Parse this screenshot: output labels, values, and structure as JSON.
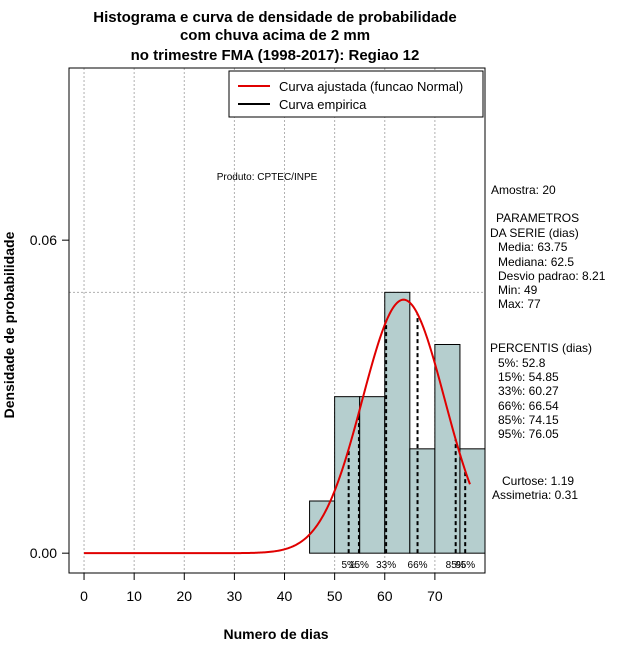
{
  "chart_data": {
    "type": "histogram",
    "title_lines": [
      "Histograma e curva de densidade de probabilidade",
      "com chuva acima de 2 mm",
      "no trimestre FMA (1998-2017): Regiao 12"
    ],
    "xlabel": "Numero de dias",
    "ylabel": "Densidade de probabilidade",
    "xlim": [
      -3,
      80
    ],
    "ylim": [
      -0.0038,
      0.093
    ],
    "x_ticks": [
      0,
      10,
      20,
      30,
      40,
      50,
      60,
      70
    ],
    "x_tick_labels": [
      "0",
      "10",
      "20",
      "30",
      "40",
      "50",
      "60",
      "70"
    ],
    "y_ticks": [
      0.0,
      0.06
    ],
    "y_tick_labels": [
      "0.00",
      "0.06"
    ],
    "grid": true,
    "ref_line_y": 0.05,
    "bars": [
      {
        "x0": 45,
        "x1": 50,
        "density": 0.01
      },
      {
        "x0": 50,
        "x1": 55,
        "density": 0.03
      },
      {
        "x0": 55,
        "x1": 60,
        "density": 0.03
      },
      {
        "x0": 60,
        "x1": 65,
        "density": 0.05
      },
      {
        "x0": 65,
        "x1": 70,
        "density": 0.02
      },
      {
        "x0": 70,
        "x1": 75,
        "density": 0.04
      },
      {
        "x0": 75,
        "x1": 80,
        "density": 0.02
      }
    ],
    "bar_color": "#b5cece",
    "curve": {
      "mean": 63.75,
      "sd": 8.21,
      "x_start": 0,
      "x_end": 77,
      "color": "#e00000"
    },
    "percentiles": [
      {
        "label": "5%",
        "value": 52.8
      },
      {
        "label": "15%",
        "value": 54.85
      },
      {
        "label": "33%",
        "value": 60.27
      },
      {
        "label": "66%",
        "value": 66.54
      },
      {
        "label": "85%",
        "value": 74.15
      },
      {
        "label": "95%",
        "value": 76.05
      }
    ],
    "legend": {
      "position": "top-right",
      "entries": [
        {
          "label": "Curva ajustada (funcao Normal)",
          "color": "#e00000"
        },
        {
          "label": "Curva empirica",
          "color": "#000000"
        }
      ]
    },
    "product_label": "Produto: CPTEC/INPE"
  },
  "sidebar": {
    "amostra": "Amostra: 20",
    "param_title_1": "PARAMETROS",
    "param_title_2": "DA SERIE (dias)",
    "media": "Media: 63.75",
    "mediana": "Mediana: 62.5",
    "desvio": "Desvio padrao: 8.21",
    "min": "Min: 49",
    "max": "Max: 77",
    "perc_title": "PERCENTIS (dias)",
    "p5": "5%: 52.8",
    "p15": "15%: 54.85",
    "p33": "33%: 60.27",
    "p66": "66%: 66.54",
    "p85": "85%: 74.15",
    "p95": "95%: 76.05",
    "curtose": "Curtose: 1.19",
    "assimetria": "Assimetria: 0.31"
  }
}
